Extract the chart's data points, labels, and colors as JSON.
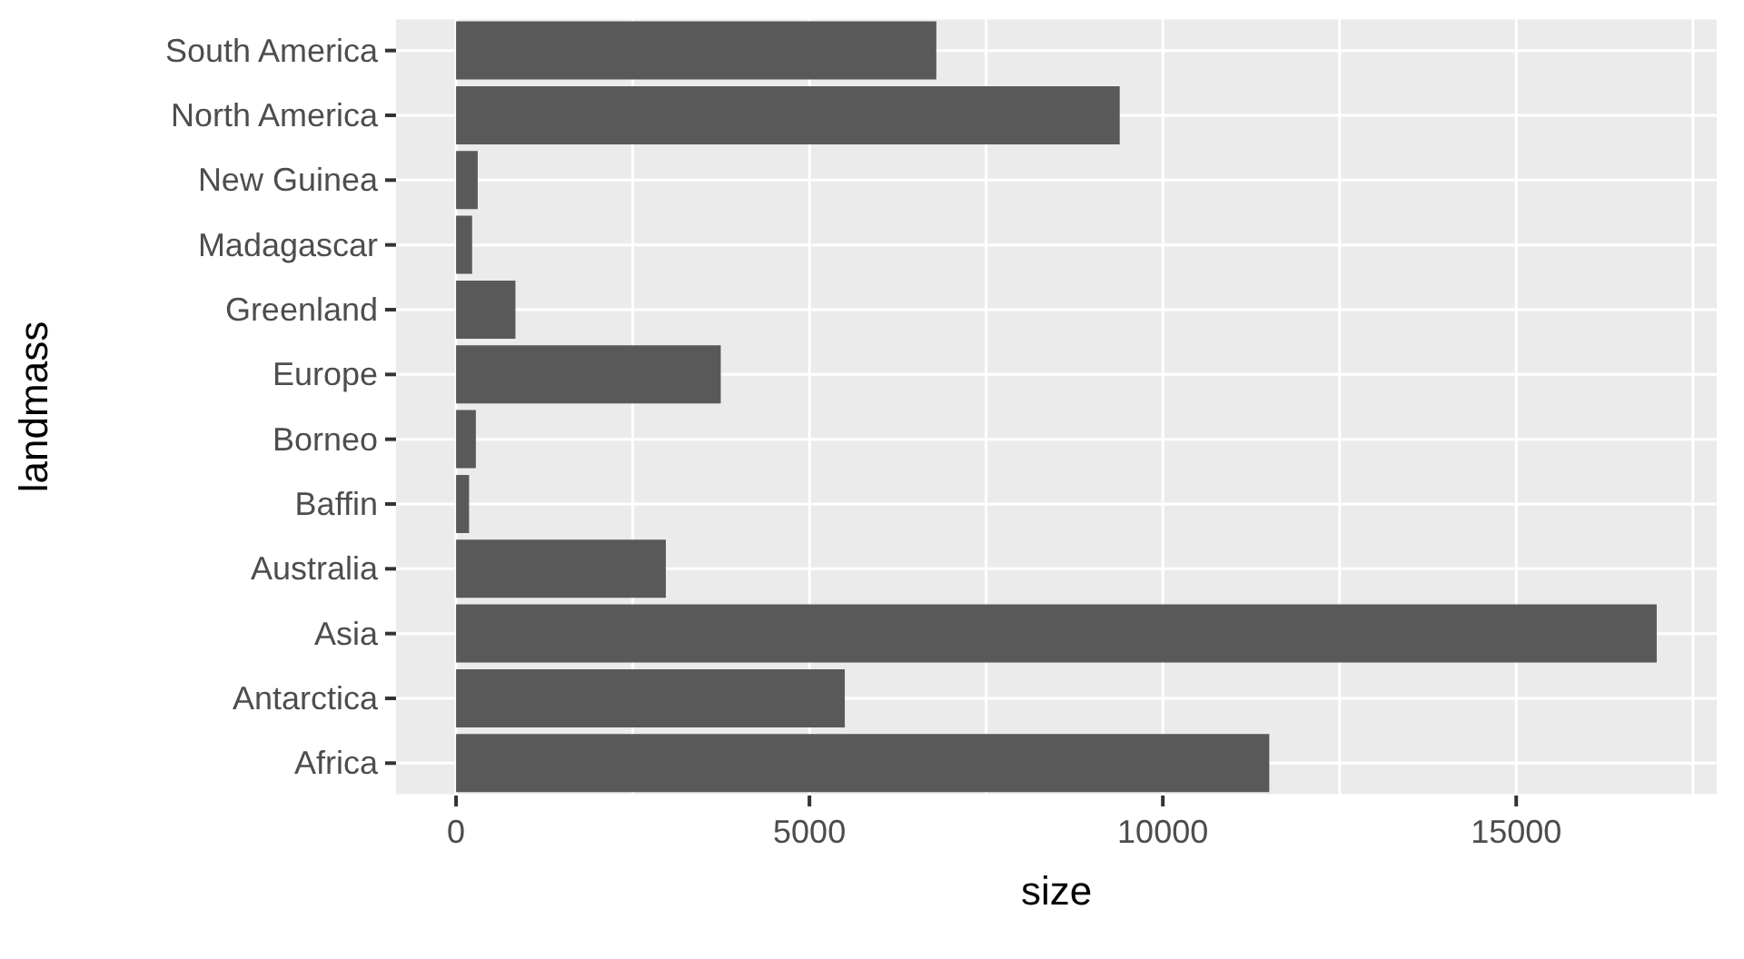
{
  "chart_data": {
    "type": "bar",
    "orientation": "horizontal",
    "xlabel": "size",
    "ylabel": "landmass",
    "categories": [
      "South America",
      "North America",
      "New Guinea",
      "Madagascar",
      "Greenland",
      "Europe",
      "Borneo",
      "Baffin",
      "Australia",
      "Asia",
      "Antarctica",
      "Africa"
    ],
    "values": [
      6795,
      9390,
      306,
      227,
      840,
      3745,
      280,
      184,
      2968,
      16988,
      5500,
      11506
    ],
    "color": "#595959",
    "xlim": [
      -849.4,
      17837.4
    ],
    "xticks": [
      0,
      {
        "value": 2500,
        "label": null
      },
      5000,
      {
        "value": 7500,
        "label": null
      },
      10000,
      {
        "value": 12500,
        "label": null
      },
      15000,
      {
        "value": 17500,
        "label": null
      }
    ],
    "grid": true
  }
}
